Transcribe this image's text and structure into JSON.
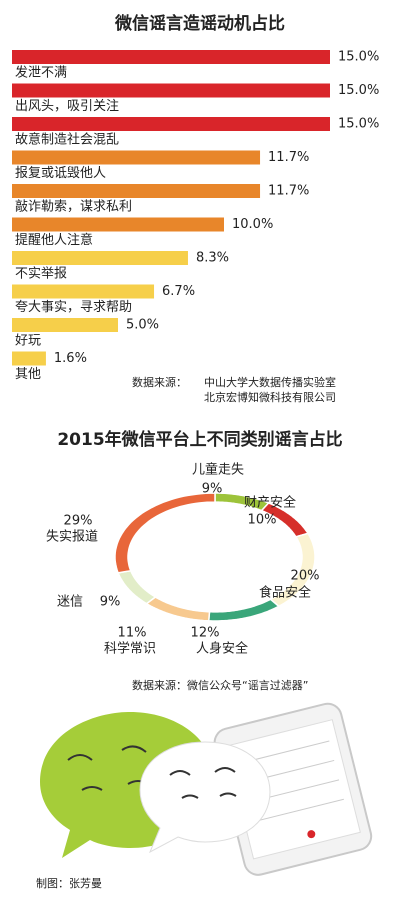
{
  "chart_data": [
    {
      "type": "bar",
      "title": "微信谣言造谣动机占比",
      "categories": [
        "发泄不满",
        "出风头，吸引关注",
        "故意制造社会混乱",
        "报复或诋毁他人",
        "敲诈勒索，谋求私利",
        "提醒他人注意",
        "不实举报",
        "夸大事实，寻求帮助",
        "好玩",
        "其他"
      ],
      "values": [
        15.0,
        15.0,
        15.0,
        11.7,
        11.7,
        10.0,
        8.3,
        6.7,
        5.0,
        1.6
      ],
      "value_labels": [
        "15.0%",
        "15.0%",
        "15.0%",
        "11.7%",
        "11.7%",
        "10.0%",
        "8.3%",
        "6.7%",
        "5.0%",
        "1.6%"
      ],
      "colors": [
        "#d9252a",
        "#d9252a",
        "#d9252a",
        "#e8862a",
        "#e8862a",
        "#e8862a",
        "#f6cf4a",
        "#f6cf4a",
        "#f6cf4a",
        "#f6cf4a"
      ],
      "source_label": "数据来源：",
      "sources": [
        "中山大学大数据传播实验室",
        "北京宏博知微科技有限公司"
      ]
    },
    {
      "type": "pie",
      "title": "2015年微信平台上不同类别谣言占比",
      "categories": [
        "儿童走失",
        "财产安全",
        "食品安全",
        "人身安全",
        "科学常识",
        "迷信",
        "失实报道"
      ],
      "values": [
        9,
        10,
        20,
        12,
        11,
        9,
        29
      ],
      "value_labels": [
        "9%",
        "10%",
        "20%",
        "12%",
        "11%",
        "9%",
        "29%"
      ],
      "colors": [
        "#9dc33a",
        "#d62f2a",
        "#fbf3d2",
        "#3aa67a",
        "#f7c98f",
        "#e2edc8",
        "#e8663a"
      ],
      "source": "数据来源：微信公众号“谣言过滤器”"
    }
  ],
  "credit": "制图：张芳曼"
}
